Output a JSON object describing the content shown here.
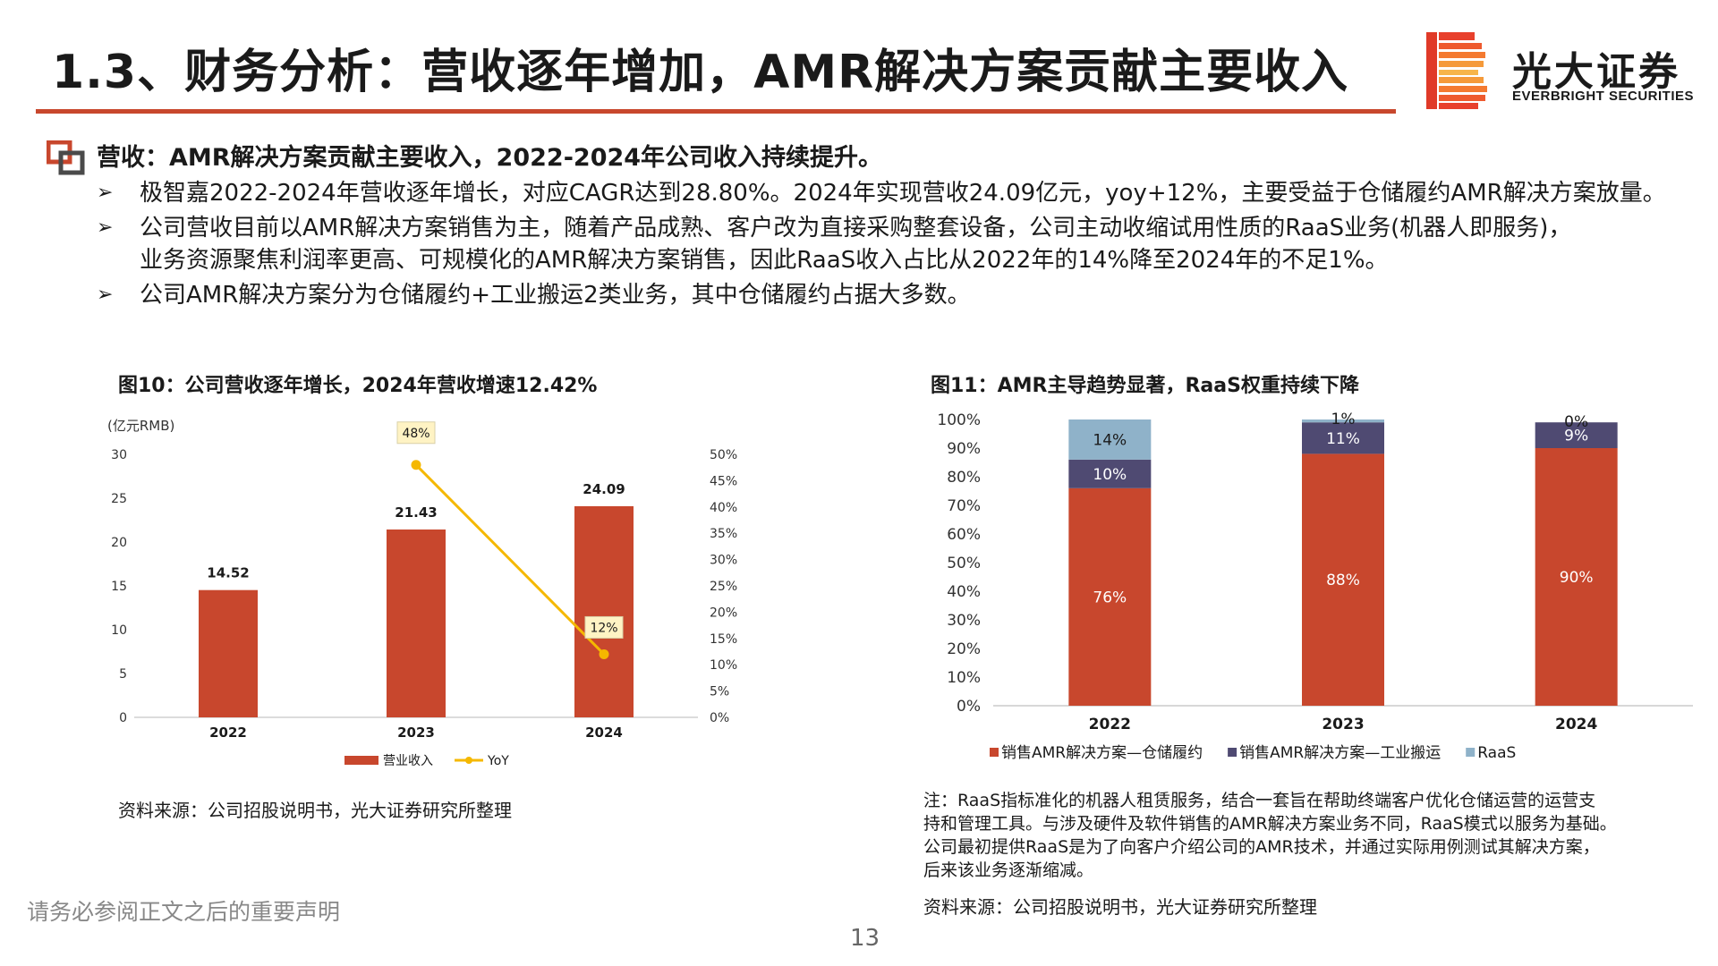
{
  "slide": {
    "title": "1.3、财务分析：营收逐年增加，AMR解决方案贡献主要收入",
    "brand_cn": "光大证券",
    "brand_en": "EVERBRIGHT SECURITIES",
    "accent_color": "#c8472d"
  },
  "section": {
    "icon": "nested-squares-icon",
    "heading": "营收：AMR解决方案贡献主要收入，2022-2024年公司收入持续提升。",
    "bullet_marker": "➢",
    "bullets": [
      {
        "lines": [
          "极智嘉2022-2024年营收逐年增长，对应CAGR达到28.80%。2024年实现营收24.09亿元，yoy+12%，主要受益于仓储履约AMR解决方案放量。"
        ]
      },
      {
        "lines": [
          "公司营收目前以AMR解决方案销售为主，随着产品成熟、客户改为直接采购整套设备，公司主动收缩试用性质的RaaS业务(机器人即服务)，",
          "业务资源聚焦利润率更高、可规模化的AMR解决方案销售，因此RaaS收入占比从2022年的14%降至2024年的不足1%。"
        ]
      },
      {
        "lines": [
          "公司AMR解决方案分为仓储履约+工业搬运2类业务，其中仓储履约占据大多数。"
        ]
      }
    ]
  },
  "fig10": {
    "title": "图10：公司营收逐年增长，2024年营收增速12.42%",
    "source": "资料来源：公司招股说明书，光大证券研究所整理"
  },
  "fig11": {
    "title": "图11：AMR主导趋势显著，RaaS权重持续下降",
    "note_lines": [
      "注：RaaS指标准化的机器人租赁服务，结合一套旨在帮助终端客户优化仓储运营的运营支",
      "持和管理工具。与涉及硬件及软件销售的AMR解决方案业务不同，RaaS模式以服务为基础。",
      "公司最初提供RaaS是为了向客户介绍公司的AMR技术，并通过实际用例测试其解决方案，",
      "后来该业务逐渐缩减。"
    ],
    "source": "资料来源：公司招股说明书，光大证券研究所整理"
  },
  "footer": {
    "disclaimer": "请务必参阅正文之后的重要声明",
    "page_number": "13"
  },
  "chart_data": [
    {
      "type": "bar",
      "title": "",
      "unit_label": "(亿元RMB)",
      "categories": [
        "2022",
        "2023",
        "2024"
      ],
      "series": [
        {
          "name": "营业收入",
          "kind": "bar",
          "axis": "left",
          "color": "#c8472d",
          "values": [
            14.52,
            21.43,
            24.09
          ],
          "labels": [
            "14.52",
            "21.43",
            "24.09"
          ]
        },
        {
          "name": "YoY",
          "kind": "line",
          "axis": "right",
          "color": "#f5b800",
          "values": [
            null,
            48,
            12
          ],
          "labels": [
            "",
            "48%",
            "12%"
          ]
        }
      ],
      "left_axis": {
        "min": 0,
        "max": 30,
        "ticks": [
          0,
          5,
          10,
          15,
          20,
          25,
          30
        ],
        "tick_labels": [
          "0",
          "5",
          "10",
          "15",
          "20",
          "25",
          "30"
        ]
      },
      "right_axis": {
        "min": 0,
        "max": 50,
        "ticks": [
          0,
          5,
          10,
          15,
          20,
          25,
          30,
          35,
          40,
          45,
          50
        ],
        "tick_labels": [
          "0%",
          "5%",
          "10%",
          "15%",
          "20%",
          "25%",
          "30%",
          "35%",
          "40%",
          "45%",
          "50%"
        ]
      },
      "grid": false,
      "legend": "bottom"
    },
    {
      "type": "bar",
      "stacked": true,
      "title": "",
      "categories": [
        "2022",
        "2023",
        "2024"
      ],
      "series": [
        {
          "name": "销售AMR解决方案—仓储履约",
          "color": "#c8472d",
          "values": [
            76,
            88,
            90
          ],
          "labels": [
            "76%",
            "88%",
            "90%"
          ],
          "label_color": "#ffffff"
        },
        {
          "name": "销售AMR解决方案—工业搬运",
          "color": "#4f4a72",
          "values": [
            10,
            11,
            9
          ],
          "labels": [
            "10%",
            "11%",
            "9%"
          ],
          "label_color": "#ffffff"
        },
        {
          "name": "RaaS",
          "color": "#8fb2c9",
          "values": [
            14,
            1,
            0
          ],
          "labels": [
            "14%",
            "1%",
            "0%"
          ],
          "label_color": "#1a1a1a"
        }
      ],
      "y_axis": {
        "min": 0,
        "max": 100,
        "ticks": [
          0,
          10,
          20,
          30,
          40,
          50,
          60,
          70,
          80,
          90,
          100
        ],
        "tick_labels": [
          "0%",
          "10%",
          "20%",
          "30%",
          "40%",
          "50%",
          "60%",
          "70%",
          "80%",
          "90%",
          "100%"
        ]
      },
      "grid": false,
      "legend": "bottom"
    }
  ]
}
